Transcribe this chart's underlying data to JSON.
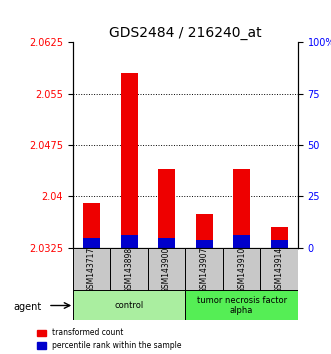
{
  "title": "GDS2484 / 216240_at",
  "samples": [
    "GSM143717",
    "GSM143898",
    "GSM143900",
    "GSM143907",
    "GSM143910",
    "GSM143914"
  ],
  "transformed_count": [
    2.039,
    2.058,
    2.044,
    2.0375,
    2.044,
    2.0355
  ],
  "percentile_rank_pct": [
    5,
    6,
    5,
    4,
    6,
    4
  ],
  "y_min": 2.0325,
  "y_max": 2.0625,
  "y_ticks": [
    2.0325,
    2.04,
    2.0475,
    2.055,
    2.0625
  ],
  "y2_ticks": [
    0,
    25,
    50,
    75,
    100
  ],
  "bar_color_red": "#EE0000",
  "bar_color_blue": "#0000CC",
  "legend_red": "transformed count",
  "legend_blue": "percentile rank within the sample",
  "light_green": "#AAEEA0",
  "bright_green": "#55EE55",
  "sample_bg": "#C8C8C8",
  "title_fontsize": 10,
  "tick_fontsize": 7,
  "bar_width": 0.45
}
